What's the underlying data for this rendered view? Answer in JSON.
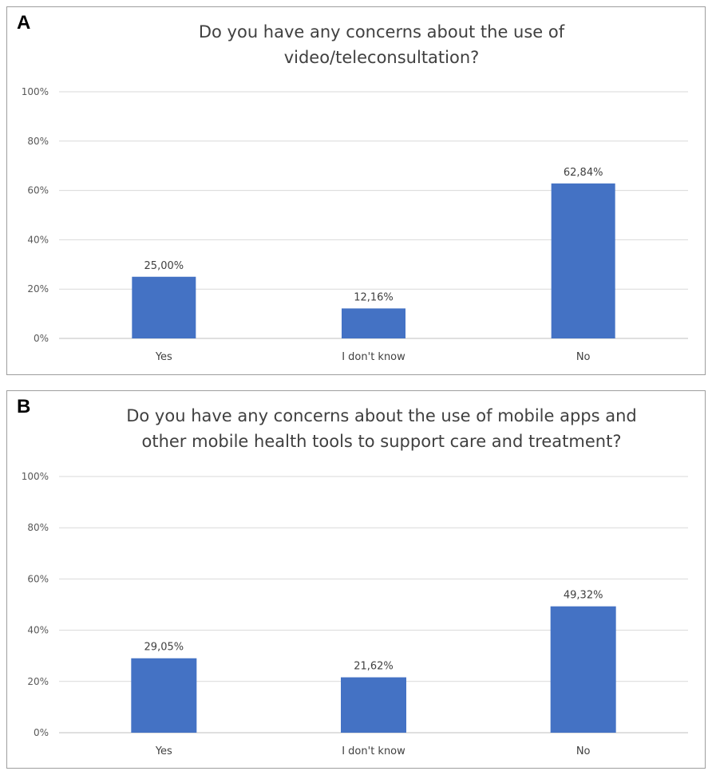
{
  "chart_data": [
    {
      "panel": "A",
      "type": "bar",
      "title_lines": [
        "Do you have any concerns about the use of",
        "video/teleconsultation?"
      ],
      "categories": [
        "Yes",
        "I don't know",
        "No"
      ],
      "values": [
        25.0,
        12.16,
        62.84
      ],
      "value_labels": [
        "25,00%",
        "12,16%",
        "62,84%"
      ],
      "yticks": [
        "0%",
        "20%",
        "40%",
        "60%",
        "80%",
        "100%"
      ],
      "ylim": [
        0,
        100
      ],
      "grid": true,
      "bar_color": "#4472C4"
    },
    {
      "panel": "B",
      "type": "bar",
      "title_lines": [
        "Do you have any concerns about the use of mobile apps and",
        "other mobile health tools to support care and treatment?"
      ],
      "categories": [
        "Yes",
        "I don't know",
        "No"
      ],
      "values": [
        29.05,
        21.62,
        49.32
      ],
      "value_labels": [
        "29,05%",
        "21,62%",
        "49,32%"
      ],
      "yticks": [
        "0%",
        "20%",
        "40%",
        "60%",
        "80%",
        "100%"
      ],
      "ylim": [
        0,
        100
      ],
      "grid": true,
      "bar_color": "#4472C4"
    }
  ]
}
